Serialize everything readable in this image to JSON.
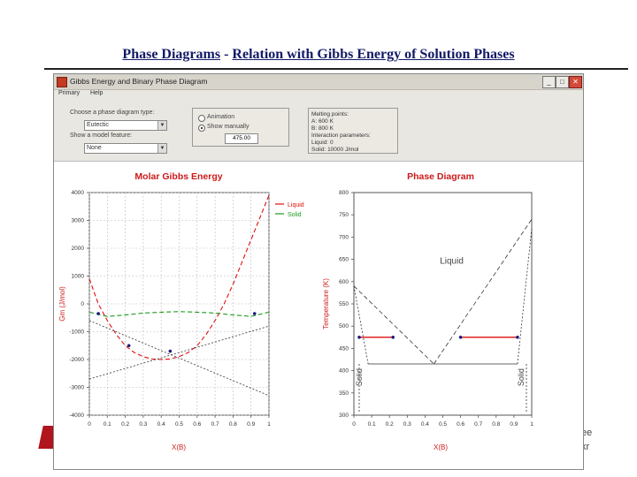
{
  "slide": {
    "title_left": "Phase Diagrams",
    "title_sep": " - ",
    "title_right": "Relation with Gibbs Energy of Solution Phases"
  },
  "window": {
    "title": "Gibbs Energy and Binary Phase Diagram",
    "menu": [
      "Primary",
      "Help"
    ],
    "controls": {
      "type_label": "Choose a phase diagram type:",
      "type_value": "Eutectic",
      "show_label": "Show a model feature:",
      "show_value": "None",
      "radio_1": "Animation",
      "radio_2": "Show manually",
      "temperature_value": "475.00"
    },
    "params": [
      "Melting points:",
      "A: 600 K",
      "B: 800 K",
      "Interaction parameters:",
      "Liquid: 0",
      "Solid: 10000 J/mol"
    ]
  },
  "chart_data": [
    {
      "type": "line",
      "title": "Molar Gibbs Energy",
      "xlabel": "X(B)",
      "ylabel": "Gm (J/mol)",
      "xlim": [
        0,
        1
      ],
      "ylim": [
        -4000,
        4000
      ],
      "x_ticks": [
        "0",
        "0.1",
        "0.2",
        "0.3",
        "0.4",
        "0.5",
        "0.6",
        "0.7",
        "0.8",
        "0.9",
        "1"
      ],
      "y_ticks": [
        "-4000",
        "-3000",
        "-2000",
        "-1000",
        "0",
        "1000",
        "2000",
        "3000",
        "4000"
      ],
      "legend": "top-right",
      "grid": true,
      "series": [
        {
          "name": "Liquid",
          "color": "#e01010",
          "dash": "dashed",
          "x": [
            0,
            0.05,
            0.1,
            0.15,
            0.2,
            0.25,
            0.3,
            0.35,
            0.4,
            0.45,
            0.5,
            0.55,
            0.6,
            0.65,
            0.7,
            0.75,
            0.8,
            0.85,
            0.9,
            0.95,
            1.0
          ],
          "y": [
            900,
            0,
            -600,
            -1100,
            -1500,
            -1750,
            -1900,
            -1980,
            -2000,
            -1980,
            -1900,
            -1750,
            -1500,
            -1100,
            -600,
            0,
            700,
            1500,
            2300,
            3100,
            3900
          ]
        },
        {
          "name": "Solid",
          "color": "#1a9a1a",
          "dash": "dashed",
          "x": [
            0,
            0.1,
            0.2,
            0.3,
            0.4,
            0.5,
            0.6,
            0.7,
            0.8,
            0.9,
            1.0
          ],
          "y": [
            -300,
            -450,
            -400,
            -330,
            -300,
            -280,
            -300,
            -330,
            -400,
            -450,
            -300
          ]
        },
        {
          "name": "",
          "color": "#333333",
          "dash": "dotted",
          "x": [
            0,
            1
          ],
          "y": [
            -2700,
            -800
          ]
        },
        {
          "name": "",
          "color": "#333333",
          "dash": "dotted",
          "x": [
            0,
            1
          ],
          "y": [
            -600,
            -3300
          ]
        }
      ],
      "points": [
        {
          "x": 0.05,
          "y": -350
        },
        {
          "x": 0.22,
          "y": -1500
        },
        {
          "x": 0.45,
          "y": -1700
        },
        {
          "x": 0.92,
          "y": -350
        }
      ]
    },
    {
      "type": "line",
      "title": "Phase Diagram",
      "xlabel": "X(B)",
      "ylabel": "Temperature (K)",
      "xlim": [
        0,
        1
      ],
      "ylim": [
        300,
        800
      ],
      "x_ticks": [
        "0",
        "0.1",
        "0.2",
        "0.3",
        "0.4",
        "0.5",
        "0.6",
        "0.7",
        "0.8",
        "0.9",
        "1"
      ],
      "y_ticks": [
        "300",
        "350",
        "400",
        "450",
        "500",
        "550",
        "600",
        "650",
        "700",
        "750",
        "800"
      ],
      "labels": {
        "liquid": "Liquid",
        "solid_left": "Solid",
        "solid_right": "Solid"
      },
      "series": [
        {
          "name": "",
          "color": "#333333",
          "dash": "dashed",
          "x": [
            0,
            0.45
          ],
          "y": [
            590,
            415
          ]
        },
        {
          "name": "",
          "color": "#333333",
          "dash": "dashed",
          "x": [
            0.45,
            1.0
          ],
          "y": [
            415,
            740
          ]
        },
        {
          "name": "",
          "color": "#333333",
          "dash": "dotted",
          "x": [
            0,
            0.08
          ],
          "y": [
            590,
            415
          ]
        },
        {
          "name": "",
          "color": "#333333",
          "dash": "dotted",
          "x": [
            0.92,
            1.0
          ],
          "y": [
            415,
            720
          ]
        },
        {
          "name": "",
          "color": "#333333",
          "dash": "solid",
          "x": [
            0.08,
            0.92
          ],
          "y": [
            415,
            415
          ]
        },
        {
          "name": "",
          "color": "#333333",
          "dash": "dotted",
          "x": [
            0.03,
            0.03
          ],
          "y": [
            415,
            305
          ]
        },
        {
          "name": "",
          "color": "#333333",
          "dash": "dotted",
          "x": [
            0.97,
            0.97
          ],
          "y": [
            415,
            305
          ]
        }
      ],
      "tie_lines": [
        {
          "x": [
            0.03,
            0.22
          ],
          "y": 475,
          "color": "#e01010"
        },
        {
          "x": [
            0.6,
            0.92
          ],
          "y": 475,
          "color": "#e01010"
        }
      ],
      "points": [
        {
          "x": 0.03,
          "y": 475
        },
        {
          "x": 0.22,
          "y": 475
        },
        {
          "x": 0.6,
          "y": 475
        },
        {
          "x": 0.92,
          "y": 475
        }
      ]
    }
  ],
  "overlay": {
    "right_text_1": "ee",
    "right_text_2": "kr"
  }
}
